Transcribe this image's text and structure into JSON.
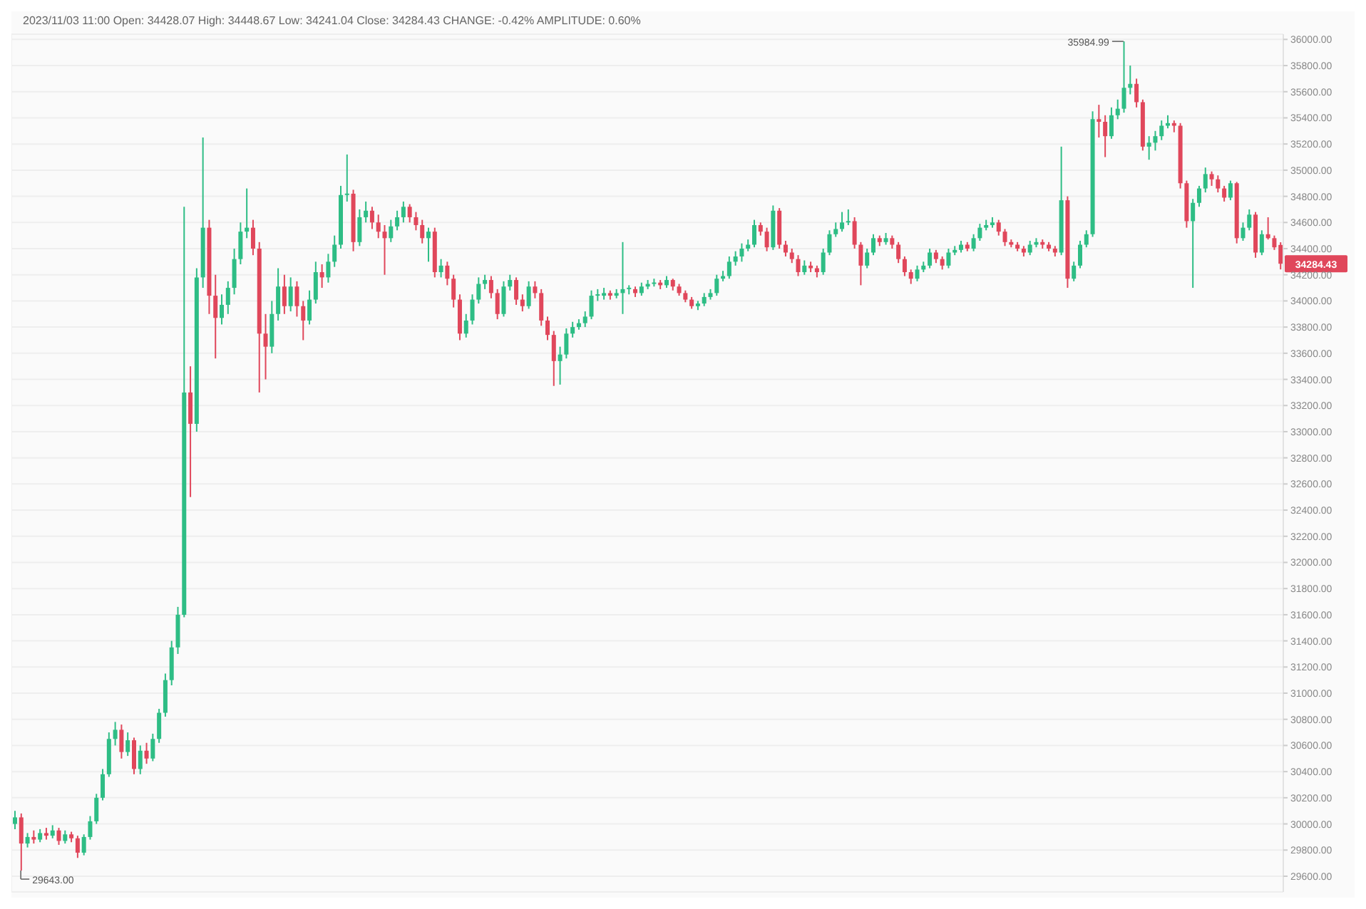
{
  "chart_data": {
    "type": "candlestick",
    "title": "2023/11/03 11:00 Open: 34428.07 High: 34448.67 Low: 34241.04 Close: 34284.43 CHANGE: -0.42% AMPLITUDE: 0.60%",
    "categories": [
      null,
      null,
      null,
      null,
      null,
      null,
      null,
      null,
      null,
      null,
      null,
      null,
      null,
      null,
      null,
      null,
      null,
      null,
      null,
      null,
      null,
      null,
      null,
      null,
      null,
      null,
      null,
      null,
      null,
      null,
      null,
      null,
      null,
      null,
      null,
      null,
      null,
      null,
      null,
      null,
      null,
      null,
      null,
      null,
      null,
      null,
      null,
      null,
      null,
      null,
      null,
      null,
      null,
      null,
      null,
      null,
      null,
      null,
      null,
      null,
      null,
      null,
      null,
      null,
      null,
      null,
      null,
      null,
      null,
      null,
      null,
      null,
      null,
      null,
      null,
      null,
      null,
      null,
      null,
      null,
      null,
      null,
      null,
      null,
      null,
      null,
      null,
      null,
      null,
      null,
      null,
      null,
      null,
      null,
      null,
      null,
      null,
      null,
      null,
      null,
      null,
      null,
      null,
      null,
      null,
      null,
      null,
      null,
      null,
      null,
      null,
      null,
      null,
      null,
      null,
      null,
      null,
      null,
      null,
      null,
      null,
      null,
      null,
      null,
      null,
      null,
      null,
      null,
      null,
      null,
      null,
      null,
      null,
      null,
      null,
      null,
      null,
      null,
      null,
      null,
      null,
      null,
      null,
      null,
      null,
      null,
      null,
      null,
      null,
      null,
      null,
      null,
      null,
      null,
      null,
      null,
      null,
      null,
      null,
      null,
      null,
      null,
      null,
      null,
      null,
      null,
      null,
      null,
      null,
      null,
      null,
      null,
      null,
      null,
      null,
      null,
      null,
      null,
      null,
      null,
      null,
      null,
      null,
      null,
      null,
      null,
      null,
      null,
      null,
      null,
      null,
      null,
      null,
      null,
      null,
      null,
      null,
      null,
      null,
      null,
      null,
      null,
      null
    ],
    "ohlc": [
      [
        30000,
        30100,
        29960,
        30050
      ],
      [
        30050,
        30080,
        29643,
        29850
      ],
      [
        29850,
        29930,
        29820,
        29900
      ],
      [
        29900,
        29950,
        29850,
        29880
      ],
      [
        29880,
        29960,
        29860,
        29930
      ],
      [
        29930,
        29970,
        29880,
        29910
      ],
      [
        29910,
        29990,
        29890,
        29950
      ],
      [
        29950,
        29970,
        29840,
        29870
      ],
      [
        29870,
        29950,
        29850,
        29920
      ],
      [
        29920,
        29940,
        29860,
        29890
      ],
      [
        29890,
        29910,
        29740,
        29780
      ],
      [
        29780,
        29920,
        29760,
        29900
      ],
      [
        29900,
        30060,
        29880,
        30020
      ],
      [
        30020,
        30230,
        30000,
        30200
      ],
      [
        30200,
        30420,
        30180,
        30380
      ],
      [
        30380,
        30700,
        30360,
        30650
      ],
      [
        30650,
        30780,
        30600,
        30720
      ],
      [
        30720,
        30760,
        30500,
        30550
      ],
      [
        30550,
        30700,
        30520,
        30640
      ],
      [
        30640,
        30660,
        30380,
        30420
      ],
      [
        30420,
        30600,
        30380,
        30560
      ],
      [
        30560,
        30620,
        30460,
        30500
      ],
      [
        30500,
        30690,
        30480,
        30650
      ],
      [
        30650,
        30880,
        30620,
        30850
      ],
      [
        30850,
        31150,
        30820,
        31100
      ],
      [
        31100,
        31400,
        31060,
        31350
      ],
      [
        31350,
        31660,
        31300,
        31600
      ],
      [
        31600,
        34720,
        31580,
        33300
      ],
      [
        33300,
        33500,
        32500,
        33060
      ],
      [
        33060,
        34250,
        33000,
        34180
      ],
      [
        34180,
        35250,
        34100,
        34560
      ],
      [
        34560,
        34620,
        33900,
        34040
      ],
      [
        34040,
        34200,
        33560,
        33870
      ],
      [
        33870,
        34050,
        33820,
        33970
      ],
      [
        33970,
        34150,
        33900,
        34100
      ],
      [
        34100,
        34400,
        34050,
        34320
      ],
      [
        34320,
        34600,
        34280,
        34530
      ],
      [
        34530,
        34860,
        34480,
        34560
      ],
      [
        34560,
        34620,
        34350,
        34400
      ],
      [
        34400,
        34450,
        33300,
        33750
      ],
      [
        33750,
        33900,
        33400,
        33650
      ],
      [
        33650,
        34000,
        33600,
        33900
      ],
      [
        33900,
        34250,
        33850,
        34110
      ],
      [
        34110,
        34200,
        33900,
        33960
      ],
      [
        33960,
        34180,
        33920,
        34110
      ],
      [
        34110,
        34150,
        33880,
        33960
      ],
      [
        33960,
        34000,
        33700,
        33850
      ],
      [
        33850,
        34080,
        33820,
        34010
      ],
      [
        34010,
        34300,
        33980,
        34220
      ],
      [
        34220,
        34280,
        34100,
        34180
      ],
      [
        34180,
        34360,
        34140,
        34300
      ],
      [
        34300,
        34500,
        34260,
        34430
      ],
      [
        34430,
        34880,
        34400,
        34810
      ],
      [
        34810,
        35120,
        34760,
        34820
      ],
      [
        34820,
        34850,
        34380,
        34450
      ],
      [
        34450,
        34700,
        34420,
        34640
      ],
      [
        34640,
        34760,
        34600,
        34690
      ],
      [
        34690,
        34720,
        34550,
        34600
      ],
      [
        34600,
        34660,
        34480,
        34530
      ],
      [
        34530,
        34580,
        34200,
        34480
      ],
      [
        34480,
        34620,
        34450,
        34570
      ],
      [
        34570,
        34690,
        34540,
        34640
      ],
      [
        34640,
        34760,
        34600,
        34720
      ],
      [
        34720,
        34740,
        34600,
        34640
      ],
      [
        34640,
        34680,
        34540,
        34580
      ],
      [
        34580,
        34620,
        34440,
        34480
      ],
      [
        34480,
        34560,
        34300,
        34530
      ],
      [
        34530,
        34560,
        34180,
        34220
      ],
      [
        34220,
        34320,
        34180,
        34270
      ],
      [
        34270,
        34300,
        34120,
        34170
      ],
      [
        34170,
        34200,
        33950,
        34010
      ],
      [
        34010,
        34050,
        33700,
        33750
      ],
      [
        33750,
        33900,
        33720,
        33850
      ],
      [
        33850,
        34050,
        33820,
        34010
      ],
      [
        34010,
        34180,
        33980,
        34130
      ],
      [
        34130,
        34200,
        34090,
        34160
      ],
      [
        34160,
        34190,
        34020,
        34060
      ],
      [
        34060,
        34090,
        33860,
        33900
      ],
      [
        33900,
        34150,
        33880,
        34110
      ],
      [
        34110,
        34200,
        34080,
        34160
      ],
      [
        34160,
        34180,
        33970,
        34010
      ],
      [
        34010,
        34050,
        33920,
        33960
      ],
      [
        33960,
        34150,
        33940,
        34110
      ],
      [
        34110,
        34150,
        34020,
        34060
      ],
      [
        34060,
        34090,
        33810,
        33850
      ],
      [
        33850,
        33880,
        33700,
        33740
      ],
      [
        33740,
        33770,
        33350,
        33540
      ],
      [
        33540,
        33650,
        33360,
        33590
      ],
      [
        33590,
        33790,
        33560,
        33750
      ],
      [
        33750,
        33840,
        33720,
        33800
      ],
      [
        33800,
        33860,
        33780,
        33830
      ],
      [
        33830,
        33920,
        33800,
        33880
      ],
      [
        33880,
        34080,
        33860,
        34040
      ],
      [
        34040,
        34090,
        34000,
        34040
      ],
      [
        34040,
        34100,
        34010,
        34060
      ],
      [
        34060,
        34080,
        34010,
        34040
      ],
      [
        34040,
        34090,
        34020,
        34060
      ],
      [
        34060,
        34450,
        33900,
        34090
      ],
      [
        34090,
        34120,
        34050,
        34090
      ],
      [
        34090,
        34110,
        34030,
        34060
      ],
      [
        34060,
        34140,
        34040,
        34110
      ],
      [
        34110,
        34160,
        34090,
        34130
      ],
      [
        34130,
        34170,
        34110,
        34140
      ],
      [
        34140,
        34160,
        34090,
        34120
      ],
      [
        34120,
        34190,
        34100,
        34160
      ],
      [
        34160,
        34170,
        34080,
        34110
      ],
      [
        34110,
        34130,
        34040,
        34060
      ],
      [
        34060,
        34080,
        33990,
        34010
      ],
      [
        34010,
        34030,
        33940,
        33960
      ],
      [
        33960,
        34000,
        33930,
        33980
      ],
      [
        33980,
        34060,
        33960,
        34030
      ],
      [
        34030,
        34090,
        34010,
        34060
      ],
      [
        34060,
        34200,
        34040,
        34170
      ],
      [
        34170,
        34230,
        34150,
        34190
      ],
      [
        34190,
        34340,
        34170,
        34300
      ],
      [
        34300,
        34380,
        34270,
        34340
      ],
      [
        34340,
        34440,
        34300,
        34400
      ],
      [
        34400,
        34470,
        34380,
        34430
      ],
      [
        34430,
        34620,
        34410,
        34580
      ],
      [
        34580,
        34600,
        34500,
        34530
      ],
      [
        34530,
        34560,
        34380,
        34410
      ],
      [
        34410,
        34730,
        34390,
        34690
      ],
      [
        34690,
        34710,
        34400,
        34430
      ],
      [
        34430,
        34460,
        34340,
        34370
      ],
      [
        34370,
        34400,
        34290,
        34320
      ],
      [
        34320,
        34350,
        34190,
        34220
      ],
      [
        34220,
        34310,
        34200,
        34270
      ],
      [
        34270,
        34300,
        34220,
        34250
      ],
      [
        34250,
        34270,
        34180,
        34220
      ],
      [
        34220,
        34400,
        34200,
        34370
      ],
      [
        34370,
        34540,
        34350,
        34510
      ],
      [
        34510,
        34600,
        34490,
        34550
      ],
      [
        34550,
        34680,
        34530,
        34600
      ],
      [
        34600,
        34700,
        34580,
        34610
      ],
      [
        34610,
        34640,
        34400,
        34430
      ],
      [
        34430,
        34450,
        34120,
        34270
      ],
      [
        34270,
        34400,
        34250,
        34370
      ],
      [
        34370,
        34510,
        34350,
        34480
      ],
      [
        34480,
        34500,
        34420,
        34450
      ],
      [
        34450,
        34520,
        34430,
        34480
      ],
      [
        34480,
        34500,
        34400,
        34430
      ],
      [
        34430,
        34450,
        34290,
        34320
      ],
      [
        34320,
        34340,
        34190,
        34220
      ],
      [
        34220,
        34240,
        34130,
        34170
      ],
      [
        34170,
        34270,
        34150,
        34240
      ],
      [
        34240,
        34300,
        34220,
        34270
      ],
      [
        34270,
        34400,
        34250,
        34370
      ],
      [
        34370,
        34390,
        34290,
        34320
      ],
      [
        34320,
        34340,
        34240,
        34270
      ],
      [
        34270,
        34400,
        34250,
        34370
      ],
      [
        34370,
        34420,
        34350,
        34390
      ],
      [
        34390,
        34460,
        34370,
        34430
      ],
      [
        34430,
        34450,
        34380,
        34400
      ],
      [
        34400,
        34510,
        34380,
        34480
      ],
      [
        34480,
        34590,
        34460,
        34560
      ],
      [
        34560,
        34620,
        34540,
        34580
      ],
      [
        34580,
        34640,
        34560,
        34600
      ],
      [
        34600,
        34620,
        34500,
        34530
      ],
      [
        34530,
        34550,
        34420,
        34450
      ],
      [
        34450,
        34470,
        34410,
        34430
      ],
      [
        34430,
        34450,
        34380,
        34400
      ],
      [
        34400,
        34420,
        34340,
        34370
      ],
      [
        34370,
        34460,
        34350,
        34430
      ],
      [
        34430,
        34480,
        34410,
        34450
      ],
      [
        34450,
        34470,
        34400,
        34430
      ],
      [
        34430,
        34450,
        34380,
        34400
      ],
      [
        34400,
        34420,
        34340,
        34370
      ],
      [
        34370,
        35180,
        34350,
        34770
      ],
      [
        34770,
        34800,
        34100,
        34170
      ],
      [
        34170,
        34300,
        34150,
        34270
      ],
      [
        34270,
        34460,
        34250,
        34430
      ],
      [
        34430,
        34540,
        34410,
        34510
      ],
      [
        34510,
        35450,
        34490,
        35390
      ],
      [
        35390,
        35500,
        35250,
        35370
      ],
      [
        35370,
        35420,
        35100,
        35260
      ],
      [
        35260,
        35480,
        35240,
        35420
      ],
      [
        35420,
        35540,
        35390,
        35470
      ],
      [
        35470,
        35984.99,
        35440,
        35630
      ],
      [
        35630,
        35800,
        35580,
        35660
      ],
      [
        35660,
        35700,
        35480,
        35520
      ],
      [
        35520,
        35540,
        35150,
        35180
      ],
      [
        35180,
        35260,
        35080,
        35210
      ],
      [
        35210,
        35300,
        35150,
        35260
      ],
      [
        35260,
        35380,
        35230,
        35340
      ],
      [
        35340,
        35420,
        35320,
        35360
      ],
      [
        35360,
        35380,
        35290,
        35340
      ],
      [
        35340,
        35360,
        34860,
        34900
      ],
      [
        34900,
        34920,
        34560,
        34610
      ],
      [
        34610,
        34780,
        34100,
        34750
      ],
      [
        34750,
        34880,
        34720,
        34860
      ],
      [
        34860,
        35020,
        34830,
        34970
      ],
      [
        34970,
        34990,
        34880,
        34930
      ],
      [
        34930,
        34960,
        34830,
        34860
      ],
      [
        34860,
        34880,
        34760,
        34790
      ],
      [
        34790,
        34920,
        34770,
        34900
      ],
      [
        34900,
        34910,
        34440,
        34480
      ],
      [
        34480,
        34600,
        34460,
        34560
      ],
      [
        34560,
        34700,
        34540,
        34660
      ],
      [
        34660,
        34680,
        34330,
        34370
      ],
      [
        34370,
        34540,
        34350,
        34510
      ],
      [
        34510,
        34640,
        34470,
        34480
      ],
      [
        34480,
        34500,
        34390,
        34410
      ],
      [
        34428.07,
        34448.67,
        34241.04,
        34284.43
      ]
    ],
    "ylim": [
      29480,
      36040
    ],
    "yticks": [
      {
        "value": 29600,
        "label": "29600.00"
      },
      {
        "value": 29800,
        "label": "29800.00"
      },
      {
        "value": 30000,
        "label": "30000.00"
      },
      {
        "value": 30200,
        "label": "30200.00"
      },
      {
        "value": 30400,
        "label": "30400.00"
      },
      {
        "value": 30600,
        "label": "30600.00"
      },
      {
        "value": 30800,
        "label": "30800.00"
      },
      {
        "value": 31000,
        "label": "31000.00"
      },
      {
        "value": 31200,
        "label": "31200.00"
      },
      {
        "value": 31400,
        "label": "31400.00"
      },
      {
        "value": 31600,
        "label": "31600.00"
      },
      {
        "value": 31800,
        "label": "31800.00"
      },
      {
        "value": 32000,
        "label": "32000.00"
      },
      {
        "value": 32200,
        "label": "32200.00"
      },
      {
        "value": 32400,
        "label": "32400.00"
      },
      {
        "value": 32600,
        "label": "32600.00"
      },
      {
        "value": 32800,
        "label": "32800.00"
      },
      {
        "value": 33000,
        "label": "33000.00"
      },
      {
        "value": 33200,
        "label": "33200.00"
      },
      {
        "value": 33400,
        "label": "33400.00"
      },
      {
        "value": 33600,
        "label": "33600.00"
      },
      {
        "value": 33800,
        "label": "33800.00"
      },
      {
        "value": 34000,
        "label": "34000.00"
      },
      {
        "value": 34200,
        "label": "34200.00"
      },
      {
        "value": 34400,
        "label": "34400.00"
      },
      {
        "value": 34600,
        "label": "34600.00"
      },
      {
        "value": 34800,
        "label": "34800.00"
      },
      {
        "value": 35000,
        "label": "35000.00"
      },
      {
        "value": 35200,
        "label": "35200.00"
      },
      {
        "value": 35400,
        "label": "35400.00"
      },
      {
        "value": 35600,
        "label": "35600.00"
      },
      {
        "value": 35800,
        "label": "35800.00"
      },
      {
        "value": 36000,
        "label": "36000.00"
      }
    ],
    "tick_labels": "y",
    "grid": true,
    "annotations": [
      "35984.99",
      "29643.00",
      "34284.43"
    ]
  }
}
